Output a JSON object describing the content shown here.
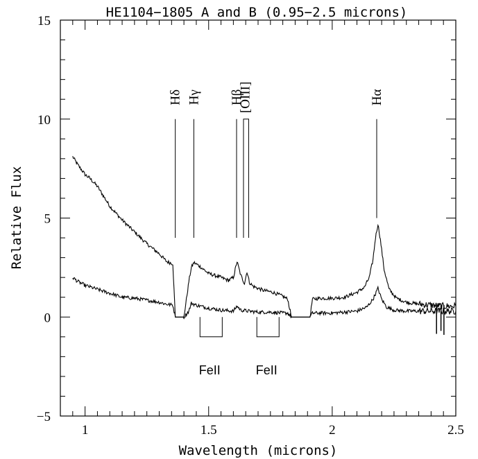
{
  "chart_data": {
    "type": "line",
    "title": "HE1104−1805 A and B (0.95−2.5 microns)",
    "xlabel": "Wavelength (microns)",
    "ylabel": "Relative Flux",
    "xlim": [
      0.9,
      2.5
    ],
    "ylim": [
      -5,
      15
    ],
    "x_ticks": [
      "1",
      "1.5",
      "2",
      "2.5"
    ],
    "y_ticks": [
      "−5",
      "0",
      "5",
      "10",
      "15"
    ],
    "grid": false,
    "legend": "none",
    "series": [
      {
        "x": [
          0.95,
          0.97,
          1.0,
          1.02,
          1.05,
          1.08,
          1.1,
          1.15,
          1.2,
          1.25,
          1.3,
          1.33,
          1.355,
          1.365,
          1.4,
          1.42,
          1.43,
          1.44,
          1.46,
          1.5,
          1.55,
          1.58,
          1.6,
          1.615,
          1.63,
          1.645,
          1.655,
          1.665,
          1.68,
          1.72,
          1.76,
          1.8,
          1.82,
          1.835,
          1.91,
          1.92,
          1.95,
          2.0,
          2.05,
          2.1,
          2.13,
          2.15,
          2.165,
          2.175,
          2.185,
          2.195,
          2.21,
          2.23,
          2.26,
          2.3,
          2.35,
          2.4,
          2.45,
          2.5
        ],
        "y": [
          8.1,
          7.7,
          7.2,
          7.0,
          6.6,
          6.0,
          5.6,
          4.9,
          4.3,
          3.7,
          3.2,
          2.8,
          2.7,
          0.0,
          0.0,
          1.8,
          2.5,
          2.75,
          2.6,
          2.2,
          2.0,
          1.85,
          2.0,
          2.8,
          2.1,
          1.7,
          2.3,
          1.75,
          1.55,
          1.35,
          1.25,
          1.05,
          0.9,
          0.0,
          0.0,
          0.9,
          0.95,
          0.95,
          1.0,
          1.25,
          1.5,
          2.0,
          2.9,
          4.0,
          4.7,
          3.9,
          2.4,
          1.4,
          0.95,
          0.75,
          0.65,
          0.6,
          0.55,
          0.55
        ]
      },
      {
        "x": [
          0.95,
          0.97,
          1.0,
          1.05,
          1.1,
          1.15,
          1.2,
          1.25,
          1.3,
          1.33,
          1.355,
          1.365,
          1.4,
          1.42,
          1.43,
          1.45,
          1.5,
          1.55,
          1.6,
          1.615,
          1.63,
          1.66,
          1.7,
          1.75,
          1.8,
          1.82,
          1.835,
          1.91,
          1.92,
          1.95,
          2.0,
          2.05,
          2.1,
          2.14,
          2.165,
          2.185,
          2.2,
          2.22,
          2.25,
          2.3,
          2.35,
          2.4,
          2.45,
          2.5
        ],
        "y": [
          2.0,
          1.8,
          1.6,
          1.4,
          1.2,
          1.0,
          0.95,
          0.85,
          0.75,
          0.65,
          0.6,
          0.0,
          0.0,
          0.3,
          0.7,
          0.6,
          0.45,
          0.35,
          0.3,
          0.55,
          0.35,
          0.3,
          0.25,
          0.25,
          0.2,
          0.2,
          0.0,
          0.0,
          0.2,
          0.2,
          0.2,
          0.25,
          0.3,
          0.5,
          0.9,
          1.45,
          0.9,
          0.5,
          0.35,
          0.3,
          0.3,
          0.3,
          0.3,
          0.3
        ]
      }
    ],
    "spikes": [
      {
        "x": 2.422,
        "y_low": -0.85
      },
      {
        "x": 2.44,
        "y_low": -0.7
      },
      {
        "x": 2.452,
        "y_low": -0.9
      }
    ],
    "emission_lines": [
      {
        "label": "Hδ",
        "x": 1.365,
        "y_bottom": 4.0,
        "y_top": 10.0,
        "label_y": 11.1
      },
      {
        "label": "Hγ",
        "x": 1.44,
        "y_bottom": 4.0,
        "y_top": 10.0,
        "label_y": 11.1
      },
      {
        "label": "Hβ",
        "x": 1.613,
        "y_bottom": 4.0,
        "y_top": 10.0,
        "label_y": 11.1
      },
      {
        "label": "[OIII]",
        "x": 1.648,
        "y_bottom": 4.0,
        "y_top": 10.0,
        "label_y": 11.1,
        "pair": [
          1.641,
          1.662
        ]
      },
      {
        "label": "Hα",
        "x": 2.18,
        "y_bottom": 5.0,
        "y_top": 10.0,
        "label_y": 11.1
      }
    ],
    "feii_brackets": [
      {
        "label": "FeII",
        "x_start": 1.465,
        "x_end": 1.555,
        "y_top": 0.0,
        "y_bottom": -1.0,
        "label_y": -2.9
      },
      {
        "label": "FeII",
        "x_start": 1.695,
        "x_end": 1.785,
        "y_top": 0.0,
        "y_bottom": -1.0,
        "label_y": -2.9
      }
    ]
  }
}
